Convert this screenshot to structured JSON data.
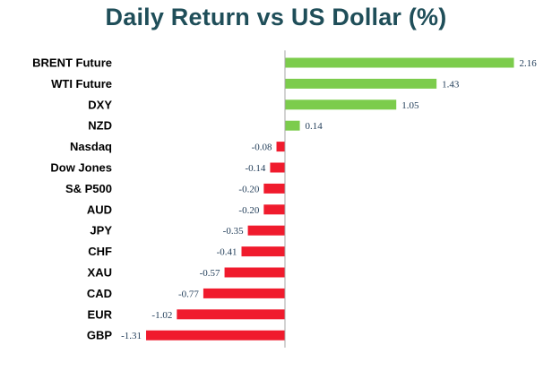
{
  "title": "Daily Return vs US Dollar (%)",
  "colors": {
    "title": "#1f4e59",
    "positive": "#7ccc4c",
    "negative": "#f01b2d",
    "axis": "#a6a6a6",
    "value_label": "#1f3b57"
  },
  "chart_data": {
    "type": "bar",
    "orientation": "horizontal",
    "title": "Daily Return vs US Dollar (%)",
    "xlabel": "",
    "ylabel": "",
    "grid": false,
    "legend": "none",
    "categories": [
      "BRENT Future",
      "WTI Future",
      "DXY",
      "NZD",
      "Nasdaq",
      "Dow Jones",
      "S& P500",
      "AUD",
      "JPY",
      "CHF",
      "XAU",
      "CAD",
      "EUR",
      "GBP"
    ],
    "values": [
      2.16,
      1.43,
      1.05,
      0.14,
      -0.08,
      -0.14,
      -0.2,
      -0.2,
      -0.35,
      -0.41,
      -0.57,
      -0.77,
      -1.02,
      -1.31
    ],
    "value_labels": [
      "2.16",
      "1.43",
      "1.05",
      "0.14",
      "-0.08",
      "-0.14",
      "-0.20",
      "-0.20",
      "-0.35",
      "-0.41",
      "-0.57",
      "-0.77",
      "-1.02",
      "-1.31"
    ],
    "xlim": [
      -1.31,
      2.16
    ]
  }
}
